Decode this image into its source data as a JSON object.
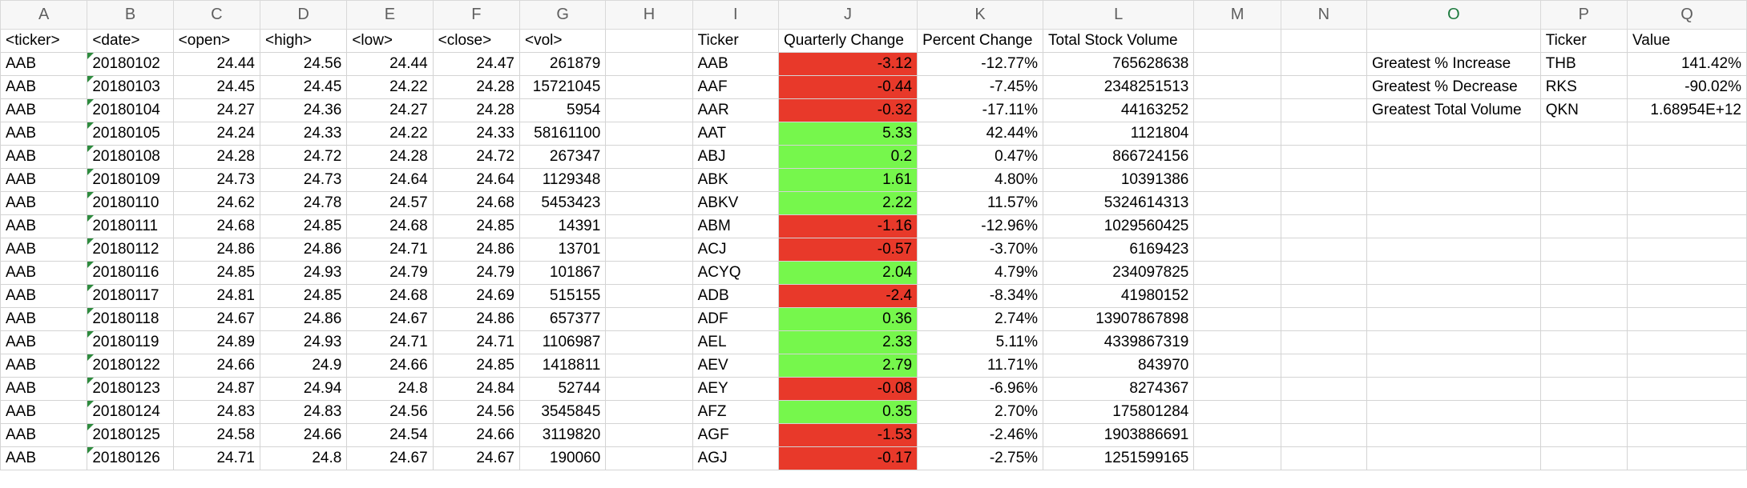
{
  "columns": [
    "A",
    "B",
    "C",
    "D",
    "E",
    "F",
    "G",
    "H",
    "I",
    "J",
    "K",
    "L",
    "M",
    "N",
    "O",
    "P",
    "Q"
  ],
  "selected_column": "O",
  "headers": [
    "<ticker>",
    "<date>",
    "<open>",
    "<high>",
    "<low>",
    "<close>",
    "<vol>",
    "",
    "Ticker",
    "Quarterly Change",
    "Percent Change",
    "Total Stock Volume",
    "",
    "",
    "",
    "Ticker",
    "Value"
  ],
  "colors": {
    "negative_fill": "#e8392a",
    "positive_fill": "#76f74c",
    "selected_header_text": "#1d7a3e"
  },
  "rows": [
    {
      "a": "AAB",
      "b": "20180102",
      "c": "24.44",
      "d": "24.56",
      "e": "24.44",
      "f": "24.47",
      "g": "261879",
      "i": "AAB",
      "j": "-3.12",
      "k": "-12.77%",
      "l": "765628638",
      "o": "Greatest % Increase",
      "p": "THB",
      "q": "141.42%"
    },
    {
      "a": "AAB",
      "b": "20180103",
      "c": "24.45",
      "d": "24.45",
      "e": "24.22",
      "f": "24.28",
      "g": "15721045",
      "i": "AAF",
      "j": "-0.44",
      "k": "-7.45%",
      "l": "2348251513",
      "o": "Greatest % Decrease",
      "p": "RKS",
      "q": "-90.02%"
    },
    {
      "a": "AAB",
      "b": "20180104",
      "c": "24.27",
      "d": "24.36",
      "e": "24.27",
      "f": "24.28",
      "g": "5954",
      "i": "AAR",
      "j": "-0.32",
      "k": "-17.11%",
      "l": "44163252",
      "o": "Greatest Total Volume",
      "p": "QKN",
      "q": "1.68954E+12"
    },
    {
      "a": "AAB",
      "b": "20180105",
      "c": "24.24",
      "d": "24.33",
      "e": "24.22",
      "f": "24.33",
      "g": "58161100",
      "i": "AAT",
      "j": "5.33",
      "k": "42.44%",
      "l": "1121804",
      "o": "",
      "p": "",
      "q": ""
    },
    {
      "a": "AAB",
      "b": "20180108",
      "c": "24.28",
      "d": "24.72",
      "e": "24.28",
      "f": "24.72",
      "g": "267347",
      "i": "ABJ",
      "j": "0.2",
      "k": "0.47%",
      "l": "866724156",
      "o": "",
      "p": "",
      "q": ""
    },
    {
      "a": "AAB",
      "b": "20180109",
      "c": "24.73",
      "d": "24.73",
      "e": "24.64",
      "f": "24.64",
      "g": "1129348",
      "i": "ABK",
      "j": "1.61",
      "k": "4.80%",
      "l": "10391386",
      "o": "",
      "p": "",
      "q": ""
    },
    {
      "a": "AAB",
      "b": "20180110",
      "c": "24.62",
      "d": "24.78",
      "e": "24.57",
      "f": "24.68",
      "g": "5453423",
      "i": "ABKV",
      "j": "2.22",
      "k": "11.57%",
      "l": "5324614313",
      "o": "",
      "p": "",
      "q": ""
    },
    {
      "a": "AAB",
      "b": "20180111",
      "c": "24.68",
      "d": "24.85",
      "e": "24.68",
      "f": "24.85",
      "g": "14391",
      "i": "ABM",
      "j": "-1.16",
      "k": "-12.96%",
      "l": "1029560425",
      "o": "",
      "p": "",
      "q": ""
    },
    {
      "a": "AAB",
      "b": "20180112",
      "c": "24.86",
      "d": "24.86",
      "e": "24.71",
      "f": "24.86",
      "g": "13701",
      "i": "ACJ",
      "j": "-0.57",
      "k": "-3.70%",
      "l": "6169423",
      "o": "",
      "p": "",
      "q": ""
    },
    {
      "a": "AAB",
      "b": "20180116",
      "c": "24.85",
      "d": "24.93",
      "e": "24.79",
      "f": "24.79",
      "g": "101867",
      "i": "ACYQ",
      "j": "2.04",
      "k": "4.79%",
      "l": "234097825",
      "o": "",
      "p": "",
      "q": ""
    },
    {
      "a": "AAB",
      "b": "20180117",
      "c": "24.81",
      "d": "24.85",
      "e": "24.68",
      "f": "24.69",
      "g": "515155",
      "i": "ADB",
      "j": "-2.4",
      "k": "-8.34%",
      "l": "41980152",
      "o": "",
      "p": "",
      "q": ""
    },
    {
      "a": "AAB",
      "b": "20180118",
      "c": "24.67",
      "d": "24.86",
      "e": "24.67",
      "f": "24.86",
      "g": "657377",
      "i": "ADF",
      "j": "0.36",
      "k": "2.74%",
      "l": "13907867898",
      "o": "",
      "p": "",
      "q": ""
    },
    {
      "a": "AAB",
      "b": "20180119",
      "c": "24.89",
      "d": "24.93",
      "e": "24.71",
      "f": "24.71",
      "g": "1106987",
      "i": "AEL",
      "j": "2.33",
      "k": "5.11%",
      "l": "4339867319",
      "o": "",
      "p": "",
      "q": ""
    },
    {
      "a": "AAB",
      "b": "20180122",
      "c": "24.66",
      "d": "24.9",
      "e": "24.66",
      "f": "24.85",
      "g": "1418811",
      "i": "AEV",
      "j": "2.79",
      "k": "11.71%",
      "l": "843970",
      "o": "",
      "p": "",
      "q": ""
    },
    {
      "a": "AAB",
      "b": "20180123",
      "c": "24.87",
      "d": "24.94",
      "e": "24.8",
      "f": "24.84",
      "g": "52744",
      "i": "AEY",
      "j": "-0.08",
      "k": "-6.96%",
      "l": "8274367",
      "o": "",
      "p": "",
      "q": ""
    },
    {
      "a": "AAB",
      "b": "20180124",
      "c": "24.83",
      "d": "24.83",
      "e": "24.56",
      "f": "24.56",
      "g": "3545845",
      "i": "AFZ",
      "j": "0.35",
      "k": "2.70%",
      "l": "175801284",
      "o": "",
      "p": "",
      "q": ""
    },
    {
      "a": "AAB",
      "b": "20180125",
      "c": "24.58",
      "d": "24.66",
      "e": "24.54",
      "f": "24.66",
      "g": "3119820",
      "i": "AGF",
      "j": "-1.53",
      "k": "-2.46%",
      "l": "1903886691",
      "o": "",
      "p": "",
      "q": ""
    },
    {
      "a": "AAB",
      "b": "20180126",
      "c": "24.71",
      "d": "24.8",
      "e": "24.67",
      "f": "24.67",
      "g": "190060",
      "i": "AGJ",
      "j": "-0.17",
      "k": "-2.75%",
      "l": "1251599165",
      "o": "",
      "p": "",
      "q": ""
    }
  ]
}
